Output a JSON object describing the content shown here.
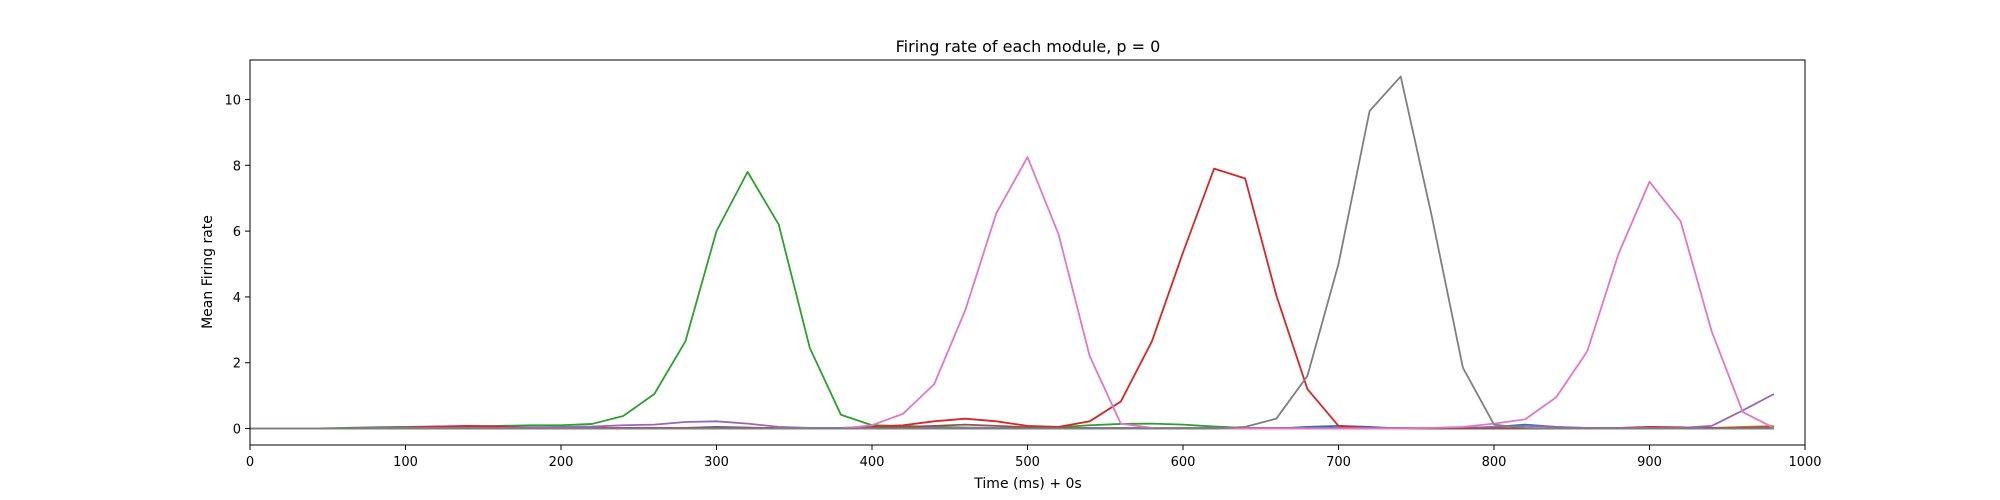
{
  "chart_data": {
    "type": "line",
    "title": "Firing rate of each module, p = 0",
    "xlabel": "Time (ms) + 0s",
    "ylabel": "Mean Firing rate",
    "xlim": [
      0,
      1000
    ],
    "ylim": [
      -0.5,
      11.2
    ],
    "xticks": [
      0,
      100,
      200,
      300,
      400,
      500,
      600,
      700,
      800,
      900,
      1000
    ],
    "yticks": [
      0,
      2,
      4,
      6,
      8,
      10
    ],
    "grid": false,
    "x": [
      0,
      20,
      40,
      60,
      80,
      100,
      120,
      140,
      160,
      180,
      200,
      220,
      240,
      260,
      280,
      300,
      320,
      340,
      360,
      380,
      400,
      420,
      440,
      460,
      480,
      500,
      520,
      540,
      560,
      580,
      600,
      620,
      640,
      660,
      680,
      700,
      720,
      740,
      760,
      780,
      800,
      820,
      840,
      860,
      880,
      900,
      920,
      940,
      960,
      980
    ],
    "series": [
      {
        "color": "#1f77b4",
        "values": [
          0,
          0,
          0,
          0,
          0,
          0,
          0,
          0,
          0,
          0,
          0,
          0,
          0,
          0,
          0.02,
          0.05,
          0.03,
          0,
          0,
          0,
          0,
          0,
          0,
          0,
          0,
          0,
          0,
          0,
          0,
          0,
          0,
          0,
          0,
          0,
          0.05,
          0.08,
          0.05,
          0,
          0,
          0,
          0.05,
          0.12,
          0.05,
          0,
          0,
          0,
          0,
          0,
          0,
          0.03
        ]
      },
      {
        "color": "#ff7f0e",
        "values": [
          0,
          0,
          0,
          0,
          0,
          0,
          0,
          0,
          0,
          0,
          0,
          0,
          0,
          0,
          0,
          0,
          0,
          0,
          0,
          0,
          0,
          0,
          0,
          0,
          0,
          0,
          0,
          0,
          0,
          0,
          0,
          0,
          0,
          0,
          0,
          0,
          0,
          0,
          0,
          0,
          0,
          0,
          0,
          0,
          0,
          0.02,
          0.03,
          0.02,
          0.05,
          0.08
        ]
      },
      {
        "color": "#2ca02c",
        "values": [
          0,
          0,
          0,
          0.02,
          0.04,
          0.05,
          0.06,
          0.07,
          0.08,
          0.1,
          0.1,
          0.14,
          0.38,
          1.05,
          2.65,
          6.0,
          7.8,
          6.2,
          2.45,
          0.42,
          0.1,
          0.08,
          0.05,
          0.03,
          0.02,
          0.02,
          0.04,
          0.1,
          0.14,
          0.15,
          0.12,
          0.06,
          0.02,
          0,
          0,
          0,
          0,
          0,
          0,
          0,
          0,
          0,
          0,
          0,
          0,
          0,
          0,
          0,
          0,
          0
        ]
      },
      {
        "color": "#d62728",
        "values": [
          0,
          0,
          0,
          0,
          0.02,
          0.03,
          0.06,
          0.08,
          0.06,
          0.04,
          0.02,
          0.02,
          0.02,
          0.02,
          0.02,
          0.02,
          0.02,
          0.02,
          0.02,
          0.02,
          0.05,
          0.1,
          0.22,
          0.3,
          0.22,
          0.08,
          0.05,
          0.22,
          0.82,
          2.65,
          5.35,
          7.9,
          7.6,
          4.05,
          1.2,
          0.08,
          0.02,
          0,
          0,
          0,
          0,
          0,
          0,
          0,
          0.02,
          0.05,
          0.04,
          0.02,
          0.02,
          0.02
        ]
      },
      {
        "color": "#9467bd",
        "values": [
          0,
          0,
          0,
          0,
          0.02,
          0.02,
          0.02,
          0.02,
          0.02,
          0.04,
          0.05,
          0.06,
          0.1,
          0.12,
          0.2,
          0.22,
          0.15,
          0.05,
          0.02,
          0.02,
          0.02,
          0.02,
          0.02,
          0.02,
          0.02,
          0.02,
          0.02,
          0.02,
          0.02,
          0.02,
          0.02,
          0.02,
          0.02,
          0.02,
          0.02,
          0.02,
          0.02,
          0.02,
          0.02,
          0.02,
          0.05,
          0.08,
          0.05,
          0.02,
          0.02,
          0.02,
          0.02,
          0.08,
          0.55,
          1.05
        ]
      },
      {
        "color": "#8c564b",
        "values": [
          0,
          0,
          0,
          0,
          0,
          0,
          0,
          0,
          0,
          0,
          0,
          0,
          0,
          0,
          0,
          0,
          0,
          0,
          0,
          0,
          0.02,
          0.05,
          0.08,
          0.12,
          0.08,
          0.04,
          0.02,
          0,
          0,
          0,
          0,
          0,
          0,
          0,
          0,
          0,
          0,
          0,
          0,
          0,
          0,
          0,
          0,
          0,
          0,
          0,
          0,
          0,
          0.03,
          0.05
        ]
      },
      {
        "color": "#e377c2",
        "values": [
          0,
          0,
          0,
          0,
          0,
          0,
          0,
          0,
          0,
          0,
          0,
          0,
          0,
          0,
          0,
          0,
          0,
          0,
          0,
          0,
          0.1,
          0.45,
          1.35,
          3.6,
          6.55,
          8.25,
          5.9,
          2.2,
          0.15,
          0.02,
          0,
          0,
          0,
          0,
          0,
          0,
          0,
          0,
          0.02,
          0.05,
          0.15,
          0.28,
          0.95,
          2.35,
          5.3,
          7.5,
          6.3,
          2.95,
          0.5,
          0.02
        ]
      },
      {
        "color": "#7f7f7f",
        "values": [
          0,
          0,
          0,
          0,
          0,
          0,
          0,
          0,
          0,
          0,
          0,
          0,
          0,
          0,
          0,
          0,
          0,
          0,
          0,
          0,
          0,
          0,
          0,
          0,
          0,
          0,
          0,
          0,
          0,
          0,
          0,
          0,
          0.05,
          0.3,
          1.6,
          5.0,
          9.65,
          10.7,
          6.45,
          1.85,
          0.12,
          0.02,
          0,
          0,
          0,
          0,
          0,
          0,
          0,
          0
        ]
      }
    ]
  }
}
